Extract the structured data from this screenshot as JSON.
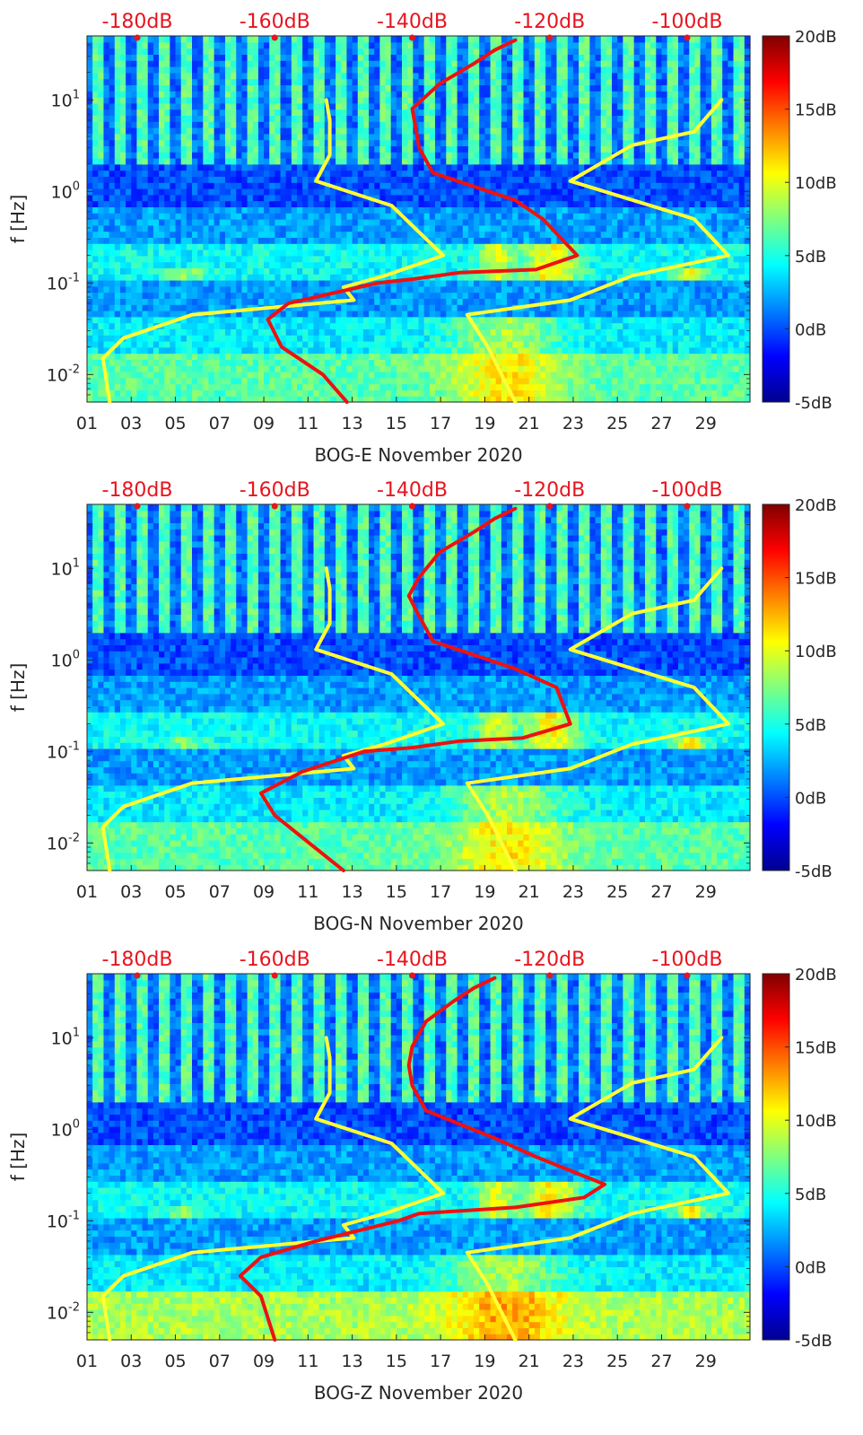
{
  "chart_data": [
    {
      "type": "heatmap",
      "xlabel": "BOG-E November 2020",
      "ylabel": "f [Hz]",
      "x_ticks": [
        "01",
        "03",
        "05",
        "07",
        "09",
        "11",
        "13",
        "15",
        "17",
        "19",
        "21",
        "23",
        "25",
        "27",
        "29"
      ],
      "y_ticks": [
        "10^-2",
        "10^-1",
        "10^0",
        "10^1"
      ],
      "y_scale": "log",
      "ylim": [
        0.005,
        50
      ],
      "xlim": [
        1,
        31
      ],
      "top_axis_ticks": [
        "-180dB",
        "-160dB",
        "-140dB",
        "-120dB",
        "-100dB"
      ],
      "colorbar_ticks": [
        "20dB",
        "15dB",
        "10dB",
        "5dB",
        "0dB",
        "-5dB"
      ],
      "colorbar_range": [
        -5,
        20
      ],
      "series": [
        {
          "name": "",
          "color": "#ffff33",
          "points": [
            [
              -152.5,
              10
            ],
            [
              -152,
              6
            ],
            [
              -152,
              2.5
            ],
            [
              -154,
              1.3
            ],
            [
              -143,
              0.7
            ],
            [
              -135.5,
              0.2
            ],
            [
              -144,
              0.12
            ],
            [
              -150,
              0.09
            ],
            [
              -148.5,
              0.065
            ],
            [
              -172,
              0.045
            ],
            [
              -182,
              0.025
            ],
            [
              -185,
              0.015
            ],
            [
              -184,
              0.005
            ]
          ]
        },
        {
          "name": "",
          "color": "#ffff33",
          "points": [
            [
              -95,
              10
            ],
            [
              -99,
              4.5
            ],
            [
              -108,
              3.2
            ],
            [
              -117,
              1.3
            ],
            [
              -99,
              0.5
            ],
            [
              -94,
              0.2
            ],
            [
              -108,
              0.12
            ],
            [
              -117,
              0.065
            ],
            [
              -132,
              0.045
            ],
            [
              -129,
              0.02
            ],
            [
              -125,
              0.005
            ]
          ]
        },
        {
          "name": "",
          "color": "#ee1111",
          "points": [
            [
              -125,
              45
            ],
            [
              -128,
              35
            ],
            [
              -131,
              25
            ],
            [
              -136,
              15
            ],
            [
              -140,
              8
            ],
            [
              -139.5,
              5
            ],
            [
              -139,
              3
            ],
            [
              -137,
              1.6
            ],
            [
              -125,
              0.8
            ],
            [
              -121,
              0.5
            ],
            [
              -116,
              0.2
            ],
            [
              -122,
              0.14
            ],
            [
              -133,
              0.13
            ],
            [
              -140,
              0.11
            ],
            [
              -145,
              0.1
            ],
            [
              -158,
              0.06
            ],
            [
              -161,
              0.04
            ],
            [
              -159,
              0.02
            ],
            [
              -153,
              0.01
            ],
            [
              -149.5,
              0.005
            ]
          ]
        }
      ]
    },
    {
      "type": "heatmap",
      "xlabel": "BOG-N November 2020",
      "ylabel": "f [Hz]",
      "x_ticks": [
        "01",
        "03",
        "05",
        "07",
        "09",
        "11",
        "13",
        "15",
        "17",
        "19",
        "21",
        "23",
        "25",
        "27",
        "29"
      ],
      "y_ticks": [
        "10^-2",
        "10^-1",
        "10^0",
        "10^1"
      ],
      "y_scale": "log",
      "ylim": [
        0.005,
        50
      ],
      "xlim": [
        1,
        31
      ],
      "top_axis_ticks": [
        "-180dB",
        "-160dB",
        "-140dB",
        "-120dB",
        "-100dB"
      ],
      "colorbar_ticks": [
        "20dB",
        "15dB",
        "10dB",
        "5dB",
        "0dB",
        "-5dB"
      ],
      "colorbar_range": [
        -5,
        20
      ],
      "series": [
        {
          "name": "",
          "color": "#ffff33",
          "points": [
            [
              -152.5,
              10
            ],
            [
              -152,
              6
            ],
            [
              -152,
              2.5
            ],
            [
              -154,
              1.3
            ],
            [
              -143,
              0.7
            ],
            [
              -135.5,
              0.2
            ],
            [
              -144,
              0.12
            ],
            [
              -150,
              0.09
            ],
            [
              -148.5,
              0.065
            ],
            [
              -172,
              0.045
            ],
            [
              -182,
              0.025
            ],
            [
              -185,
              0.015
            ],
            [
              -184,
              0.005
            ]
          ]
        },
        {
          "name": "",
          "color": "#ffff33",
          "points": [
            [
              -95,
              10
            ],
            [
              -99,
              4.5
            ],
            [
              -108,
              3.2
            ],
            [
              -117,
              1.3
            ],
            [
              -99,
              0.5
            ],
            [
              -94,
              0.2
            ],
            [
              -108,
              0.12
            ],
            [
              -117,
              0.065
            ],
            [
              -132,
              0.045
            ],
            [
              -129,
              0.02
            ],
            [
              -125,
              0.005
            ]
          ]
        },
        {
          "name": "",
          "color": "#ee1111",
          "points": [
            [
              -125,
              45
            ],
            [
              -128,
              35
            ],
            [
              -131,
              25
            ],
            [
              -136,
              15
            ],
            [
              -139,
              8
            ],
            [
              -140.5,
              5
            ],
            [
              -139,
              3
            ],
            [
              -137,
              1.6
            ],
            [
              -125,
              0.8
            ],
            [
              -119,
              0.5
            ],
            [
              -117,
              0.2
            ],
            [
              -124,
              0.14
            ],
            [
              -133,
              0.13
            ],
            [
              -140,
              0.11
            ],
            [
              -147,
              0.1
            ],
            [
              -156,
              0.06
            ],
            [
              -162,
              0.035
            ],
            [
              -160,
              0.02
            ],
            [
              -155,
              0.01
            ],
            [
              -150,
              0.005
            ]
          ]
        }
      ]
    },
    {
      "type": "heatmap",
      "xlabel": "BOG-Z November 2020",
      "ylabel": "f [Hz]",
      "x_ticks": [
        "01",
        "03",
        "05",
        "07",
        "09",
        "11",
        "13",
        "15",
        "17",
        "19",
        "21",
        "23",
        "25",
        "27",
        "29"
      ],
      "y_ticks": [
        "10^-2",
        "10^-1",
        "10^0",
        "10^1"
      ],
      "y_scale": "log",
      "ylim": [
        0.005,
        50
      ],
      "xlim": [
        1,
        31
      ],
      "top_axis_ticks": [
        "-180dB",
        "-160dB",
        "-140dB",
        "-120dB",
        "-100dB"
      ],
      "colorbar_ticks": [
        "20dB",
        "15dB",
        "10dB",
        "5dB",
        "0dB",
        "-5dB"
      ],
      "colorbar_range": [
        -5,
        20
      ],
      "series": [
        {
          "name": "",
          "color": "#ffff33",
          "points": [
            [
              -152.5,
              10
            ],
            [
              -152,
              6
            ],
            [
              -152,
              2.5
            ],
            [
              -154,
              1.3
            ],
            [
              -143,
              0.7
            ],
            [
              -135.5,
              0.2
            ],
            [
              -144,
              0.12
            ],
            [
              -150,
              0.09
            ],
            [
              -148.5,
              0.065
            ],
            [
              -172,
              0.045
            ],
            [
              -182,
              0.025
            ],
            [
              -185,
              0.015
            ],
            [
              -184,
              0.005
            ]
          ]
        },
        {
          "name": "",
          "color": "#ffff33",
          "points": [
            [
              -95,
              10
            ],
            [
              -99,
              4.5
            ],
            [
              -108,
              3.2
            ],
            [
              -117,
              1.3
            ],
            [
              -99,
              0.5
            ],
            [
              -94,
              0.2
            ],
            [
              -108,
              0.12
            ],
            [
              -117,
              0.065
            ],
            [
              -132,
              0.045
            ],
            [
              -129,
              0.02
            ],
            [
              -125,
              0.005
            ]
          ]
        },
        {
          "name": "",
          "color": "#ee1111",
          "points": [
            [
              -128,
              45
            ],
            [
              -131,
              35
            ],
            [
              -134,
              25
            ],
            [
              -138,
              15
            ],
            [
              -140,
              8
            ],
            [
              -140.5,
              5
            ],
            [
              -140,
              3
            ],
            [
              -138,
              1.6
            ],
            [
              -128,
              0.8
            ],
            [
              -122,
              0.5
            ],
            [
              -112,
              0.25
            ],
            [
              -115,
              0.18
            ],
            [
              -125,
              0.14
            ],
            [
              -139,
              0.12
            ],
            [
              -142,
              0.1
            ],
            [
              -154,
              0.06
            ],
            [
              -162,
              0.04
            ],
            [
              -165,
              0.025
            ],
            [
              -162,
              0.015
            ],
            [
              -160,
              0.005
            ]
          ]
        }
      ]
    }
  ]
}
